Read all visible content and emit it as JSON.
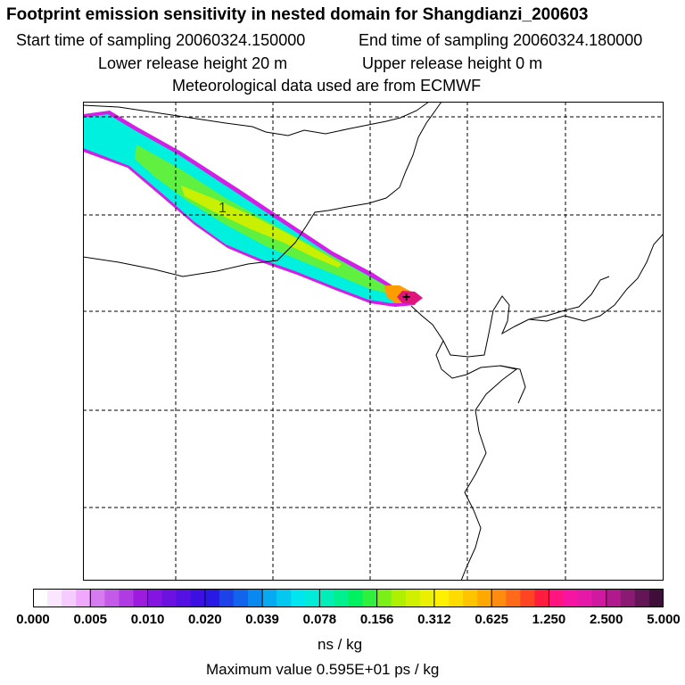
{
  "header": {
    "title": "Footprint emission sensitivity in nested domain for Shangdianzi_200603",
    "start_time": "Start time of sampling 20060324.150000",
    "end_time": "End time of sampling 20060324.180000",
    "lower_release": "Lower release height   20 m",
    "upper_release": "Upper release height    0 m",
    "met_data": "Meteorological data used are from ECMWF"
  },
  "map": {
    "contour_label": "1",
    "station_marker": "+"
  },
  "colorbar": {
    "segment_colors": [
      "#ffffff",
      "#fbe6ff",
      "#f6cbff",
      "#efa8fb",
      "#d77cf0",
      "#c35ae8",
      "#b13be2",
      "#9d1bdf",
      "#8415e0",
      "#6b12e0",
      "#5511e2",
      "#3c10e2",
      "#2a18e4",
      "#1d42e8",
      "#1264ec",
      "#0988ef",
      "#07aaf0",
      "#04c8f0",
      "#00e5f0",
      "#00ecd8",
      "#00eeb8",
      "#00f090",
      "#00f060",
      "#2ff03c",
      "#7af018",
      "#aef000",
      "#d0f000",
      "#eaf000",
      "#fff000",
      "#ffdc00",
      "#ffc300",
      "#ffa800",
      "#ff8c10",
      "#ff6a1a",
      "#ff4424",
      "#ff1c3c",
      "#ff1480",
      "#f515a0",
      "#e518a8",
      "#cf1aa0",
      "#b01a8c",
      "#8a1a72",
      "#631555",
      "#3f0f3a"
    ],
    "tick_labels": [
      "0.000",
      "0.005",
      "0.010",
      "0.020",
      "0.039",
      "0.078",
      "0.156",
      "0.312",
      "0.625",
      "1.250",
      "2.500",
      "5.000"
    ],
    "units": "ns / kg",
    "max_value": "Maximum value  0.595E+01 ps / kg"
  },
  "colors": {
    "plume_outer": "#d21ee6",
    "plume_low": "#00f0e0",
    "plume_mid": "#60f040",
    "plume_high": "#c8f000",
    "plume_core": "#ff9c00",
    "station": "#e0147a"
  }
}
